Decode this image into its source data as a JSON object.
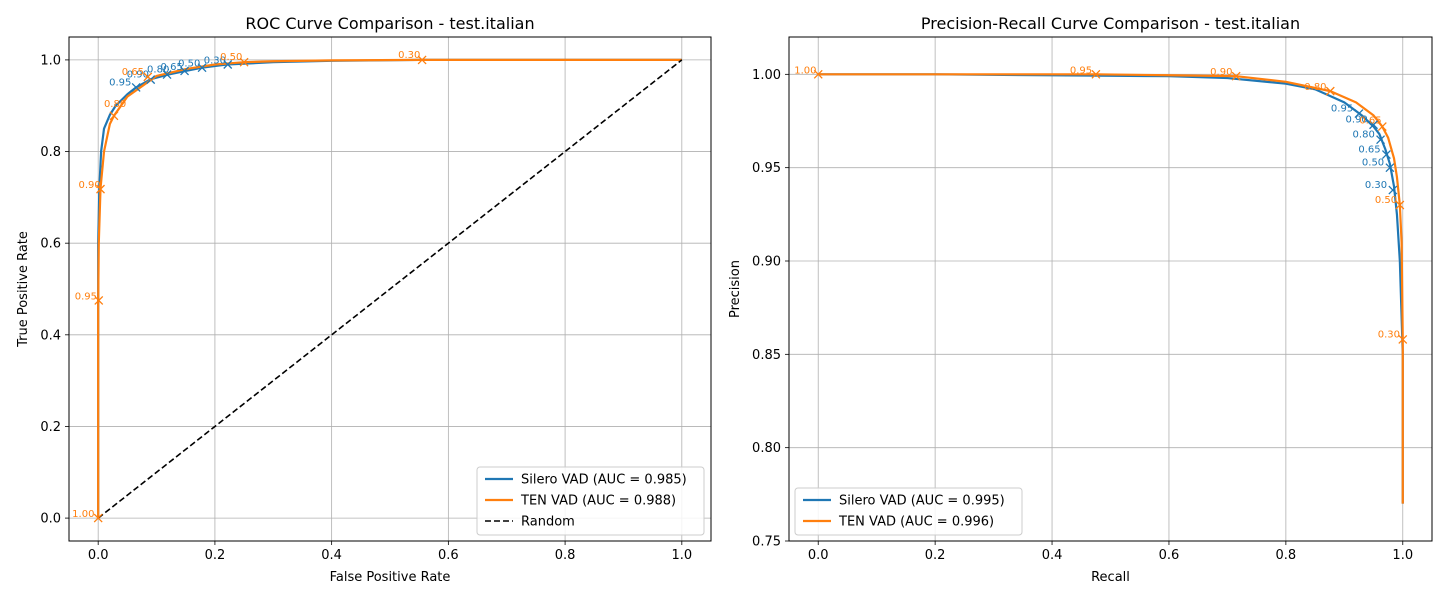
{
  "colors": {
    "silero": "#1f77b4",
    "ten": "#ff7f0e",
    "random": "#000000",
    "grid": "#b0b0b0"
  },
  "chart_data": [
    {
      "type": "line",
      "title": "ROC Curve Comparison - test.italian",
      "xlabel": "False Positive Rate",
      "ylabel": "True Positive Rate",
      "xlim": [
        -0.05,
        1.05
      ],
      "ylim": [
        -0.05,
        1.05
      ],
      "xticks": [
        0.0,
        0.2,
        0.4,
        0.6,
        0.8,
        1.0
      ],
      "yticks": [
        0.0,
        0.2,
        0.4,
        0.6,
        0.8,
        1.0
      ],
      "xtick_labels": [
        "0.0",
        "0.2",
        "0.4",
        "0.6",
        "0.8",
        "1.0"
      ],
      "ytick_labels": [
        "0.0",
        "0.2",
        "0.4",
        "0.6",
        "0.8",
        "1.0"
      ],
      "grid": true,
      "legend_position": "lower-right",
      "series": [
        {
          "name": "Silero VAD (AUC = 0.985)",
          "color": "#1f77b4",
          "style": "solid",
          "x": [
            0,
            0.0,
            0.002,
            0.005,
            0.01,
            0.02,
            0.03,
            0.05,
            0.065,
            0.09,
            0.12,
            0.15,
            0.178,
            0.22,
            0.3,
            0.4,
            0.55,
            0.7,
            1.0
          ],
          "y": [
            0,
            0.6,
            0.72,
            0.8,
            0.85,
            0.88,
            0.9,
            0.925,
            0.94,
            0.958,
            0.968,
            0.976,
            0.983,
            0.99,
            0.995,
            0.998,
            1.0,
            1.0,
            1.0
          ],
          "thresholds": [
            {
              "label": "0.95",
              "x": 0.065,
              "y": 0.94
            },
            {
              "label": "0.90",
              "x": 0.09,
              "y": 0.957
            },
            {
              "label": "0.80",
              "x": 0.118,
              "y": 0.968
            },
            {
              "label": "0.65",
              "x": 0.148,
              "y": 0.976
            },
            {
              "label": "0.50",
              "x": 0.178,
              "y": 0.983
            },
            {
              "label": "0.30",
              "x": 0.222,
              "y": 0.99
            }
          ]
        },
        {
          "name": "TEN VAD (AUC = 0.988)",
          "color": "#ff7f0e",
          "style": "solid",
          "x": [
            0,
            0.0,
            0.001,
            0.004,
            0.01,
            0.02,
            0.027,
            0.05,
            0.1,
            0.15,
            0.2,
            0.25,
            0.3,
            0.4,
            0.555,
            0.7,
            1.0
          ],
          "y": [
            0,
            0.47,
            0.6,
            0.72,
            0.8,
            0.86,
            0.878,
            0.92,
            0.965,
            0.98,
            0.99,
            0.995,
            0.997,
            0.999,
            1.0,
            1.0,
            1.0
          ],
          "thresholds": [
            {
              "label": "1.00",
              "x": 0.0,
              "y": 0.0
            },
            {
              "label": "0.95",
              "x": 0.001,
              "y": 0.475
            },
            {
              "label": "0.90",
              "x": 0.004,
              "y": 0.718
            },
            {
              "label": "0.80",
              "x": 0.027,
              "y": 0.878
            },
            {
              "label": "0.65",
              "x": 0.085,
              "y": 0.963
            },
            {
              "label": "0.50",
              "x": 0.25,
              "y": 0.995
            },
            {
              "label": "0.30",
              "x": 0.555,
              "y": 1.0
            }
          ]
        },
        {
          "name": "Random",
          "color": "#000000",
          "style": "dashed",
          "x": [
            0,
            1
          ],
          "y": [
            0,
            1
          ],
          "thresholds": []
        }
      ]
    },
    {
      "type": "line",
      "title": "Precision-Recall Curve Comparison - test.italian",
      "xlabel": "Recall",
      "ylabel": "Precision",
      "xlim": [
        -0.05,
        1.05
      ],
      "ylim": [
        0.75,
        1.02
      ],
      "xticks": [
        0.0,
        0.2,
        0.4,
        0.6,
        0.8,
        1.0
      ],
      "yticks": [
        0.75,
        0.8,
        0.85,
        0.9,
        0.95,
        1.0
      ],
      "xtick_labels": [
        "0.0",
        "0.2",
        "0.4",
        "0.6",
        "0.8",
        "1.0"
      ],
      "ytick_labels": [
        "0.75",
        "0.80",
        "0.85",
        "0.90",
        "0.95",
        "1.00"
      ],
      "grid": true,
      "legend_position": "lower-left",
      "series": [
        {
          "name": "Silero VAD (AUC = 0.995)",
          "color": "#1f77b4",
          "style": "solid",
          "x": [
            0.0,
            0.2,
            0.4,
            0.6,
            0.7,
            0.8,
            0.85,
            0.9,
            0.93,
            0.95,
            0.96,
            0.97,
            0.978,
            0.985,
            0.99,
            0.995,
            1.0,
            1.0
          ],
          "y": [
            1.0,
            1.0,
            0.9995,
            0.999,
            0.998,
            0.995,
            0.992,
            0.985,
            0.978,
            0.972,
            0.968,
            0.96,
            0.952,
            0.94,
            0.925,
            0.9,
            0.85,
            0.77
          ],
          "thresholds": [
            {
              "label": "0.95",
              "x": 0.925,
              "y": 0.979
            },
            {
              "label": "0.90",
              "x": 0.95,
              "y": 0.973
            },
            {
              "label": "0.80",
              "x": 0.962,
              "y": 0.965
            },
            {
              "label": "0.65",
              "x": 0.972,
              "y": 0.957
            },
            {
              "label": "0.50",
              "x": 0.978,
              "y": 0.95
            },
            {
              "label": "0.30",
              "x": 0.983,
              "y": 0.938
            }
          ]
        },
        {
          "name": "TEN VAD (AUC = 0.996)",
          "color": "#ff7f0e",
          "style": "solid",
          "x": [
            0.0,
            0.2,
            0.475,
            0.6,
            0.715,
            0.8,
            0.876,
            0.92,
            0.95,
            0.965,
            0.975,
            0.985,
            0.99,
            0.995,
            0.998,
            1.0,
            1.0,
            1.0
          ],
          "y": [
            1.0,
            1.0,
            1.0,
            0.9995,
            0.999,
            0.996,
            0.991,
            0.985,
            0.978,
            0.972,
            0.966,
            0.955,
            0.945,
            0.93,
            0.91,
            0.858,
            0.8,
            0.77
          ],
          "thresholds": [
            {
              "label": "1.00",
              "x": 0.0,
              "y": 1.0
            },
            {
              "label": "0.95",
              "x": 0.475,
              "y": 1.0
            },
            {
              "label": "0.90",
              "x": 0.715,
              "y": 0.999
            },
            {
              "label": "0.80",
              "x": 0.876,
              "y": 0.991
            },
            {
              "label": "0.65",
              "x": 0.965,
              "y": 0.972
            },
            {
              "label": "0.50",
              "x": 0.995,
              "y": 0.93
            },
            {
              "label": "0.30",
              "x": 1.0,
              "y": 0.858
            }
          ]
        }
      ]
    }
  ]
}
